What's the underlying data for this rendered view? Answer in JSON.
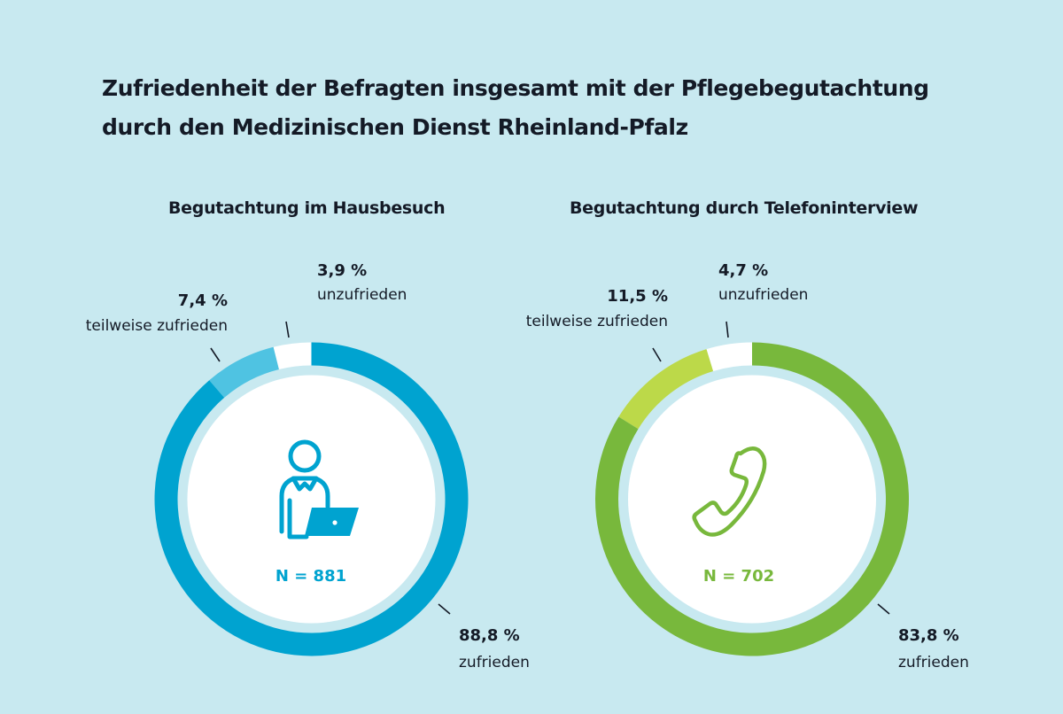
{
  "title_line1": "Zufriedenheit der Befragten insgesamt mit der Pflegebegutachtung",
  "title_line2": "durch den Medizinischen Dienst Rheinland-Pfalz",
  "colors": {
    "background": "#c8e9f0",
    "gap": "#c8e9f0",
    "inner": "#ffffff"
  },
  "chart_data": [
    {
      "type": "pie",
      "title": "Begutachtung im Hausbesuch",
      "n_label": "N = 881",
      "icon": "person-with-laptop-icon",
      "accent": "#00a3d0",
      "slices": [
        {
          "key": "unzufrieden",
          "value": 3.9,
          "value_label": "3,9 %",
          "label": "unzufrieden",
          "color": "#ffffff"
        },
        {
          "key": "teilweise",
          "value": 7.4,
          "value_label": "7,4 %",
          "label": "teilweise zufrieden",
          "color": "#4fc3e2"
        },
        {
          "key": "zufrieden",
          "value": 88.8,
          "value_label": "88,8 %",
          "label": "zufrieden",
          "color": "#00a3d0"
        }
      ]
    },
    {
      "type": "pie",
      "title": "Begutachtung durch Telefoninterview",
      "n_label": "N = 702",
      "icon": "telephone-handset-icon",
      "accent": "#78b83c",
      "slices": [
        {
          "key": "unzufrieden",
          "value": 4.7,
          "value_label": "4,7 %",
          "label": "unzufrieden",
          "color": "#ffffff"
        },
        {
          "key": "teilweise",
          "value": 11.5,
          "value_label": "11,5 %",
          "label": "teilweise zufrieden",
          "color": "#bcd949"
        },
        {
          "key": "zufrieden",
          "value": 83.8,
          "value_label": "83,8 %",
          "label": "zufrieden",
          "color": "#78b83c"
        }
      ]
    }
  ]
}
